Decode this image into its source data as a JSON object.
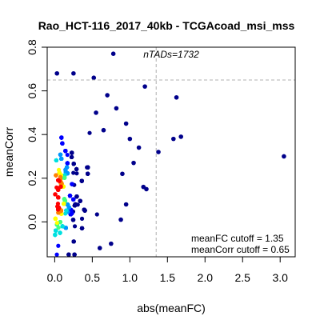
{
  "chart_data": {
    "type": "scatter",
    "title": "Rao_HCT-116_2017_40kb - TCGAcoad_msi_mss",
    "xlabel": "abs(meanFC)",
    "ylabel": "meanCorr",
    "xlim": [
      -0.1,
      3.2
    ],
    "ylim": [
      -0.16,
      0.8
    ],
    "x_ticks": [
      "0.0",
      "0.5",
      "1.0",
      "1.5",
      "2.0",
      "2.5",
      "3.0"
    ],
    "y_ticks": [
      "0.0",
      "0.2",
      "0.4",
      "0.6",
      "0.8"
    ],
    "grid": false,
    "density_colors": [
      "#00008b",
      "#0000ff",
      "#0096ff",
      "#00e0e0",
      "#40ff80",
      "#ffff00",
      "#ff8000",
      "#ff0000"
    ],
    "annotation_top": "nTADs=1732",
    "cutoff_fc": 1.35,
    "cutoff_corr": 0.65,
    "cutoff_fc_label": "meanFC cutoff = 1.35",
    "cutoff_corr_label": "meanCorr cutoff = 0.65",
    "outliers": [
      {
        "x": 0.78,
        "y": 0.77
      },
      {
        "x": 1.2,
        "y": 0.62
      },
      {
        "x": 1.62,
        "y": 0.57
      },
      {
        "x": 3.05,
        "y": 0.3
      },
      {
        "x": 1.58,
        "y": 0.38
      },
      {
        "x": 1.68,
        "y": 0.39
      },
      {
        "x": 1.38,
        "y": 0.32
      },
      {
        "x": 1.18,
        "y": 0.16
      },
      {
        "x": 1.22,
        "y": 0.15
      },
      {
        "x": 1.05,
        "y": 0.27
      },
      {
        "x": 1.12,
        "y": 0.34
      },
      {
        "x": 0.95,
        "y": 0.45
      },
      {
        "x": 0.82,
        "y": 0.52
      },
      {
        "x": 0.7,
        "y": 0.58
      },
      {
        "x": 0.52,
        "y": 0.66
      },
      {
        "x": 0.25,
        "y": 0.68
      },
      {
        "x": 0.03,
        "y": 0.68
      },
      {
        "x": 0.95,
        "y": 0.08
      },
      {
        "x": 0.88,
        "y": 0.01
      },
      {
        "x": 0.6,
        "y": -0.12
      },
      {
        "x": 0.75,
        "y": -0.1
      },
      {
        "x": 1.0,
        "y": 0.38
      },
      {
        "x": 0.9,
        "y": 0.22
      },
      {
        "x": 0.65,
        "y": 0.42
      },
      {
        "x": 0.55,
        "y": 0.5
      }
    ]
  }
}
